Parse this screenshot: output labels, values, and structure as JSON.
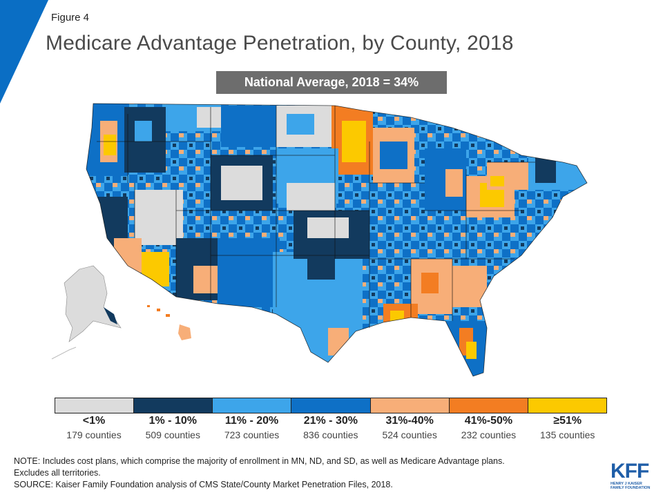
{
  "figure_label": "Figure 4",
  "title": "Medicare Advantage Penetration, by County, 2018",
  "national_average": "National Average, 2018 = 34%",
  "legend": [
    {
      "range": "<1%",
      "counties": "179 counties",
      "color": "#dcdcdc"
    },
    {
      "range": "1% - 10%",
      "counties": "509 counties",
      "color": "#123a5e"
    },
    {
      "range": "11% - 20%",
      "counties": "723 counties",
      "color": "#3da5ea"
    },
    {
      "range": "21% - 30%",
      "counties": "836 counties",
      "color": "#0e70c6"
    },
    {
      "range": "31%-40%",
      "counties": "524 counties",
      "color": "#f7ae78"
    },
    {
      "range": "41%-50%",
      "counties": "232 counties",
      "color": "#f37d22"
    },
    {
      "range": "≥51%",
      "counties": "135 counties",
      "color": "#fcc900"
    }
  ],
  "note_line1": "NOTE: Includes cost plans, which comprise the majority of enrollment in MN, ND, and SD, as well as Medicare Advantage plans.",
  "note_line2": "Excludes all territories.",
  "source": "SOURCE:  Kaiser Family Foundation analysis of CMS State/County Market Penetration Files, 2018.",
  "logo_letters": "KFF",
  "logo_sub_line1": "HENRY J KAISER",
  "logo_sub_line2": "FAMILY FOUNDATION",
  "colors": {
    "accent": "#0a6ec4",
    "title": "#4a4a4a",
    "avg_box": "#6d6d6d"
  }
}
